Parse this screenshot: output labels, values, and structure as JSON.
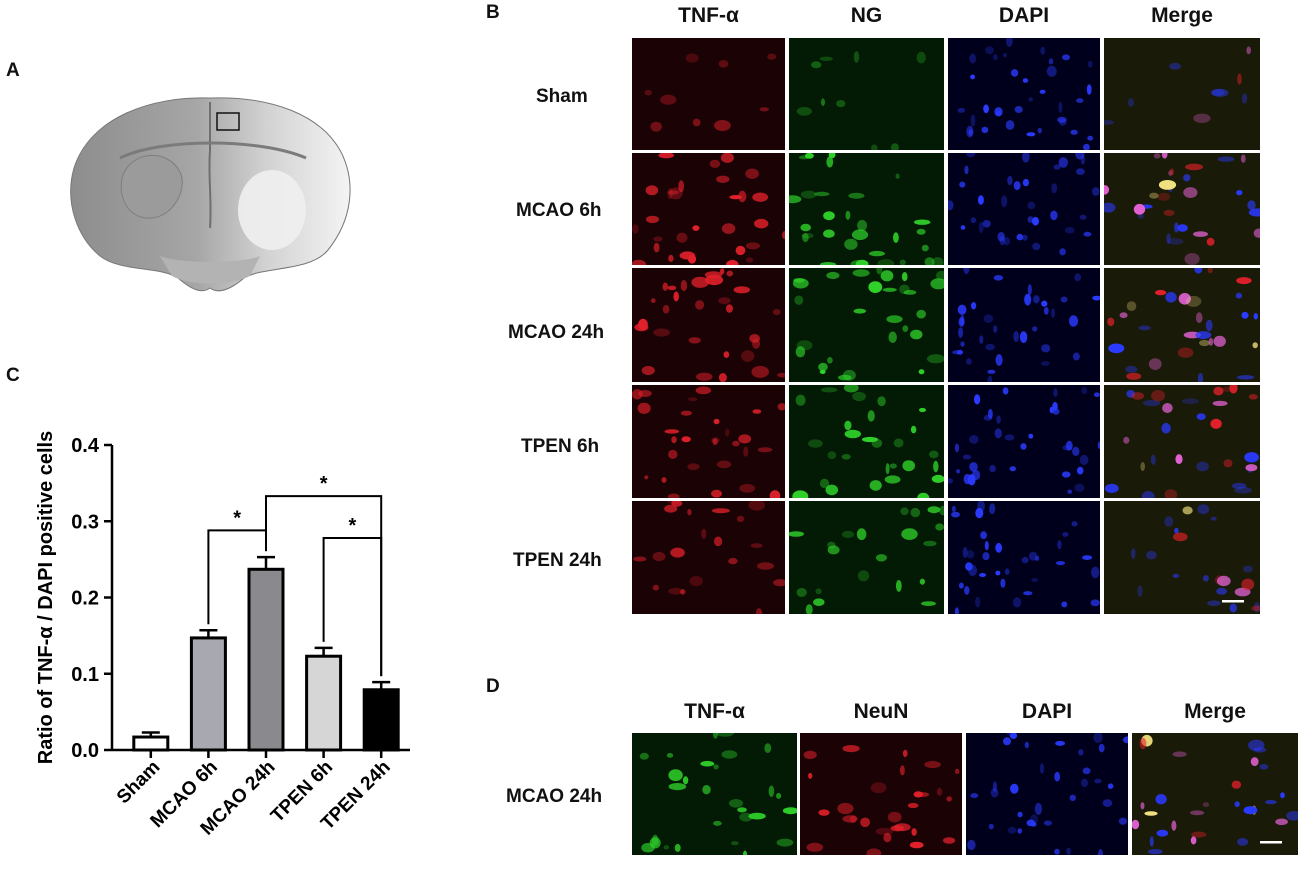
{
  "panels": {
    "a": "A",
    "b": "B",
    "c": "C",
    "d": "D"
  },
  "panel_b": {
    "columns": [
      "TNF-α",
      "NG",
      "DAPI",
      "Merge"
    ],
    "rows": [
      "Sham",
      "MCAO 6h",
      "MCAO 24h",
      "TPEN 6h",
      "TPEN 24h"
    ]
  },
  "panel_d": {
    "columns": [
      "TNF-α",
      "NeuN",
      "DAPI",
      "Merge"
    ],
    "rows": [
      "MCAO 24h"
    ]
  },
  "colors": {
    "red_channel": "#e0202a",
    "green_channel": "#2fd02a",
    "blue_channel": "#2a3aff",
    "bar_sham": "#ffffff",
    "bar_mcao6": "#a8a8b0",
    "bar_mcao24": "#8a8a8e",
    "bar_tpen6": "#d6d6d6",
    "bar_tpen24": "#000000"
  },
  "chart_data": {
    "type": "bar",
    "categories": [
      "Sham",
      "MCAO 6h",
      "MCAO 24h",
      "TPEN 6h",
      "TPEN 24h"
    ],
    "values": [
      0.017,
      0.147,
      0.237,
      0.123,
      0.079
    ],
    "errors": [
      0.006,
      0.01,
      0.016,
      0.011,
      0.01
    ],
    "ylabel": "Ratio of TNF-α / DAPI positive cells",
    "ylim": [
      0,
      0.4
    ],
    "yticks": [
      "0.0",
      "0.1",
      "0.2",
      "0.3",
      "0.4"
    ],
    "significance": [
      {
        "from": "MCAO 6h",
        "to": "MCAO 24h",
        "label": "*"
      },
      {
        "from": "MCAO 24h",
        "to": "TPEN 24h",
        "label": "*"
      },
      {
        "from": "TPEN 6h",
        "to": "TPEN 24h",
        "label": "*"
      }
    ]
  }
}
